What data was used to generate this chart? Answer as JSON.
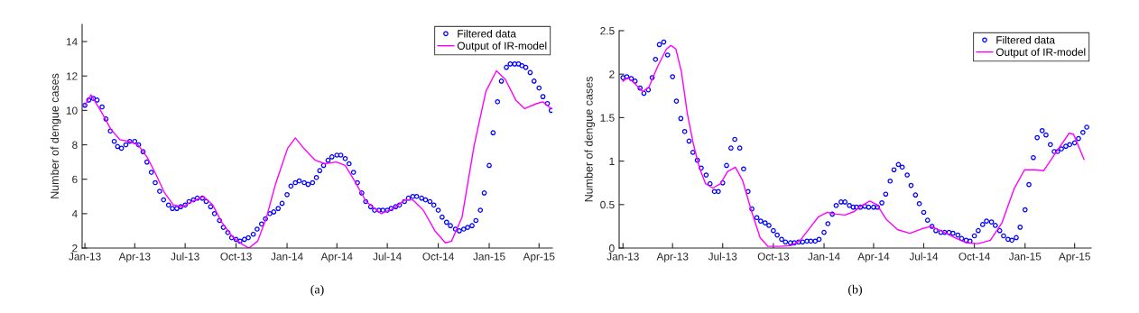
{
  "chart_data": [
    {
      "type": "line",
      "ylabel": "Number of dengue cases",
      "legend": "top right",
      "grid": false,
      "annotations": [
        "(a)"
      ],
      "xlim": [
        "2012-12-27",
        "2015-04-25"
      ],
      "ylim": [
        2,
        15
      ],
      "yticks": [
        2,
        4,
        6,
        8,
        10,
        12,
        14
      ],
      "xticks": [
        {
          "value": "2013-01-01",
          "label": "Jan-13"
        },
        {
          "value": "2013-04-01",
          "label": "Apr-13"
        },
        {
          "value": "2013-07-01",
          "label": "Jul-13"
        },
        {
          "value": "2013-10-01",
          "label": "Oct-13"
        },
        {
          "value": "2014-01-01",
          "label": "Jan-14"
        },
        {
          "value": "2014-04-01",
          "label": "Apr-14"
        },
        {
          "value": "2014-07-01",
          "label": "Jul-14"
        },
        {
          "value": "2014-10-01",
          "label": "Oct-14"
        },
        {
          "value": "2015-01-01",
          "label": "Jan-15"
        },
        {
          "value": "2015-04-01",
          "label": "Apr-15"
        }
      ],
      "series": [
        {
          "name": "Filtered data",
          "type": "scatter",
          "marker": "circle",
          "color": "#0000ff",
          "x": [
            "2013-01-01",
            "2013-01-08",
            "2013-01-16",
            "2013-01-23",
            "2013-02-01",
            "2013-02-08",
            "2013-02-16",
            "2013-02-23",
            "2013-03-01",
            "2013-03-08",
            "2013-03-16",
            "2013-03-23",
            "2013-04-01",
            "2013-04-08",
            "2013-04-16",
            "2013-04-23",
            "2013-05-01",
            "2013-05-08",
            "2013-05-16",
            "2013-05-23",
            "2013-06-01",
            "2013-06-08",
            "2013-06-16",
            "2013-06-23",
            "2013-07-01",
            "2013-07-08",
            "2013-07-16",
            "2013-07-23",
            "2013-08-01",
            "2013-08-08",
            "2013-08-16",
            "2013-08-23",
            "2013-09-01",
            "2013-09-08",
            "2013-09-16",
            "2013-09-23",
            "2013-10-01",
            "2013-10-08",
            "2013-10-16",
            "2013-10-23",
            "2013-11-01",
            "2013-11-08",
            "2013-11-16",
            "2013-11-23",
            "2013-12-01",
            "2013-12-08",
            "2013-12-16",
            "2013-12-23",
            "2014-01-01",
            "2014-01-08",
            "2014-01-16",
            "2014-01-23",
            "2014-02-01",
            "2014-02-08",
            "2014-02-16",
            "2014-02-23",
            "2014-03-01",
            "2014-03-08",
            "2014-03-16",
            "2014-03-23",
            "2014-04-01",
            "2014-04-08",
            "2014-04-16",
            "2014-04-23",
            "2014-05-01",
            "2014-05-08",
            "2014-05-16",
            "2014-05-23",
            "2014-06-01",
            "2014-06-08",
            "2014-06-16",
            "2014-06-23",
            "2014-07-01",
            "2014-07-08",
            "2014-07-16",
            "2014-07-23",
            "2014-08-01",
            "2014-08-08",
            "2014-08-16",
            "2014-08-23",
            "2014-09-01",
            "2014-09-08",
            "2014-09-16",
            "2014-09-23",
            "2014-10-01",
            "2014-10-08",
            "2014-10-16",
            "2014-10-23",
            "2014-11-01",
            "2014-11-08",
            "2014-11-16",
            "2014-11-23",
            "2014-12-01",
            "2014-12-08",
            "2014-12-16",
            "2014-12-23",
            "2015-01-01",
            "2015-01-08",
            "2015-01-16",
            "2015-01-23",
            "2015-02-01",
            "2015-02-08",
            "2015-02-16",
            "2015-02-23",
            "2015-03-01",
            "2015-03-08",
            "2015-03-16",
            "2015-03-23",
            "2015-04-01",
            "2015-04-08",
            "2015-04-16",
            "2015-04-23"
          ],
          "values": [
            10.3,
            10.6,
            10.7,
            10.6,
            10.2,
            9.5,
            8.8,
            8.2,
            7.9,
            7.8,
            8.0,
            8.2,
            8.2,
            8.0,
            7.6,
            7.0,
            6.4,
            5.8,
            5.3,
            4.8,
            4.5,
            4.3,
            4.3,
            4.4,
            4.5,
            4.7,
            4.8,
            4.9,
            4.9,
            4.7,
            4.4,
            4.0,
            3.6,
            3.2,
            2.9,
            2.6,
            2.5,
            2.4,
            2.5,
            2.6,
            2.8,
            3.1,
            3.4,
            3.7,
            4.0,
            4.1,
            4.3,
            4.6,
            5.1,
            5.6,
            5.8,
            5.9,
            5.8,
            5.7,
            5.8,
            6.1,
            6.5,
            6.8,
            7.1,
            7.3,
            7.4,
            7.4,
            7.2,
            6.9,
            6.4,
            5.8,
            5.2,
            4.7,
            4.4,
            4.2,
            4.2,
            4.2,
            4.2,
            4.3,
            4.4,
            4.5,
            4.7,
            4.9,
            5.0,
            5.0,
            4.9,
            4.8,
            4.7,
            4.5,
            4.2,
            3.8,
            3.5,
            3.3,
            3.1,
            3.0,
            3.1,
            3.2,
            3.3,
            3.6,
            4.2,
            5.2,
            6.8,
            8.7,
            10.5,
            11.7,
            12.5,
            12.7,
            12.7,
            12.7,
            12.6,
            12.5,
            12.2,
            11.7,
            11.3,
            10.8,
            10.4,
            10.0
          ]
        },
        {
          "name": "Output of IR-model",
          "line_style": "solid",
          "color": "#ff00ff",
          "x": [
            "2013-01-01",
            "2013-01-12",
            "2013-01-31",
            "2013-02-17",
            "2013-03-05",
            "2013-03-21",
            "2013-04-07",
            "2013-04-23",
            "2013-05-09",
            "2013-05-25",
            "2013-06-10",
            "2013-06-27",
            "2013-07-13",
            "2013-08-03",
            "2013-08-20",
            "2013-09-05",
            "2013-09-26",
            "2013-10-13",
            "2013-10-24",
            "2013-11-09",
            "2013-11-25",
            "2013-12-11",
            "2014-01-02",
            "2014-01-16",
            "2014-01-31",
            "2014-02-21",
            "2014-03-10",
            "2014-03-31",
            "2014-04-16",
            "2014-05-03",
            "2014-05-24",
            "2014-06-20",
            "2014-07-12",
            "2014-08-02",
            "2014-08-16",
            "2014-09-04",
            "2014-09-25",
            "2014-10-14",
            "2014-10-25",
            "2014-11-13",
            "2014-12-05",
            "2014-12-26",
            "2015-01-14",
            "2015-01-30",
            "2015-02-18",
            "2015-03-06",
            "2015-03-28",
            "2015-04-08",
            "2015-04-23"
          ],
          "values": [
            10.3,
            10.9,
            9.9,
            8.9,
            8.3,
            8.2,
            8.0,
            7.3,
            6.3,
            5.2,
            4.5,
            4.4,
            4.7,
            5.0,
            4.5,
            3.5,
            2.6,
            2.2,
            2.0,
            2.4,
            3.8,
            5.7,
            7.8,
            8.4,
            7.8,
            7.1,
            6.9,
            7.0,
            6.8,
            5.9,
            4.7,
            4.0,
            4.3,
            4.8,
            4.8,
            4.2,
            3.0,
            2.3,
            2.4,
            3.8,
            8.0,
            11.1,
            12.3,
            11.8,
            10.6,
            10.1,
            10.4,
            10.5,
            10.1
          ]
        }
      ]
    },
    {
      "type": "line",
      "ylabel": "Number of dengue cases",
      "legend": "top right",
      "grid": false,
      "annotations": [
        "(b)"
      ],
      "xlim": [
        "2012-12-25",
        "2015-05-01"
      ],
      "ylim": [
        0,
        2.5
      ],
      "yticks": [
        0,
        0.5,
        1,
        1.5,
        2,
        2.5
      ],
      "xticks": [
        {
          "value": "2013-01-01",
          "label": "Jan-13"
        },
        {
          "value": "2013-04-01",
          "label": "Apr-13"
        },
        {
          "value": "2013-07-01",
          "label": "Jul-13"
        },
        {
          "value": "2013-10-01",
          "label": "Oct-13"
        },
        {
          "value": "2014-01-01",
          "label": "Jan-14"
        },
        {
          "value": "2014-04-01",
          "label": "Apr-14"
        },
        {
          "value": "2014-07-01",
          "label": "Jul-14"
        },
        {
          "value": "2014-10-01",
          "label": "Oct-14"
        },
        {
          "value": "2015-01-01",
          "label": "Jan-15"
        },
        {
          "value": "2015-04-01",
          "label": "Apr-15"
        }
      ],
      "series": [
        {
          "name": "Filtered data",
          "type": "scatter",
          "marker": "circle",
          "color": "#0000ff",
          "x": [
            "2013-01-01",
            "2013-01-08",
            "2013-01-16",
            "2013-01-23",
            "2013-02-01",
            "2013-02-08",
            "2013-02-16",
            "2013-02-23",
            "2013-03-01",
            "2013-03-08",
            "2013-03-16",
            "2013-03-23",
            "2013-04-01",
            "2013-04-08",
            "2013-04-16",
            "2013-04-23",
            "2013-05-01",
            "2013-05-08",
            "2013-05-16",
            "2013-05-23",
            "2013-06-01",
            "2013-06-08",
            "2013-06-16",
            "2013-06-23",
            "2013-07-01",
            "2013-07-08",
            "2013-07-16",
            "2013-07-23",
            "2013-08-01",
            "2013-08-08",
            "2013-08-16",
            "2013-08-23",
            "2013-09-01",
            "2013-09-08",
            "2013-09-16",
            "2013-09-23",
            "2013-10-01",
            "2013-10-08",
            "2013-10-16",
            "2013-10-23",
            "2013-11-01",
            "2013-11-08",
            "2013-11-16",
            "2013-11-23",
            "2013-12-01",
            "2013-12-08",
            "2013-12-16",
            "2013-12-23",
            "2014-01-01",
            "2014-01-08",
            "2014-01-16",
            "2014-01-23",
            "2014-02-01",
            "2014-02-08",
            "2014-02-16",
            "2014-02-23",
            "2014-03-01",
            "2014-03-08",
            "2014-03-16",
            "2014-03-23",
            "2014-04-01",
            "2014-04-08",
            "2014-04-16",
            "2014-04-23",
            "2014-05-01",
            "2014-05-08",
            "2014-05-16",
            "2014-05-23",
            "2014-06-01",
            "2014-06-08",
            "2014-06-16",
            "2014-06-23",
            "2014-07-01",
            "2014-07-08",
            "2014-07-16",
            "2014-07-23",
            "2014-08-01",
            "2014-08-08",
            "2014-08-16",
            "2014-08-23",
            "2014-09-01",
            "2014-09-08",
            "2014-09-16",
            "2014-09-23",
            "2014-10-01",
            "2014-10-08",
            "2014-10-16",
            "2014-10-23",
            "2014-11-01",
            "2014-11-08",
            "2014-11-16",
            "2014-11-23",
            "2014-12-01",
            "2014-12-08",
            "2014-12-16",
            "2014-12-23",
            "2015-01-01",
            "2015-01-08",
            "2015-01-16",
            "2015-01-23",
            "2015-02-01",
            "2015-02-08",
            "2015-02-16",
            "2015-02-23",
            "2015-03-01",
            "2015-03-08",
            "2015-03-16",
            "2015-03-23",
            "2015-04-01",
            "2015-04-08",
            "2015-04-16",
            "2015-04-23"
          ],
          "values": [
            1.96,
            1.97,
            1.95,
            1.92,
            1.84,
            1.78,
            1.82,
            1.96,
            2.17,
            2.34,
            2.37,
            2.22,
            1.97,
            1.69,
            1.49,
            1.34,
            1.23,
            1.1,
            1.01,
            0.92,
            0.84,
            0.74,
            0.65,
            0.65,
            0.75,
            0.95,
            1.15,
            1.25,
            1.15,
            0.91,
            0.65,
            0.45,
            0.35,
            0.31,
            0.29,
            0.26,
            0.2,
            0.15,
            0.1,
            0.07,
            0.06,
            0.06,
            0.07,
            0.07,
            0.08,
            0.08,
            0.08,
            0.1,
            0.18,
            0.28,
            0.39,
            0.49,
            0.53,
            0.53,
            0.49,
            0.47,
            0.47,
            0.47,
            0.48,
            0.47,
            0.47,
            0.47,
            0.52,
            0.62,
            0.77,
            0.9,
            0.96,
            0.93,
            0.84,
            0.72,
            0.61,
            0.51,
            0.41,
            0.32,
            0.25,
            0.2,
            0.18,
            0.18,
            0.18,
            0.17,
            0.15,
            0.11,
            0.09,
            0.08,
            0.14,
            0.2,
            0.27,
            0.31,
            0.3,
            0.26,
            0.2,
            0.14,
            0.1,
            0.09,
            0.12,
            0.24,
            0.44,
            0.73,
            1.04,
            1.27,
            1.35,
            1.3,
            1.19,
            1.11,
            1.11,
            1.14,
            1.17,
            1.19,
            1.21,
            1.26,
            1.33,
            1.39
          ]
        },
        {
          "name": "Output of IR-model",
          "line_style": "solid",
          "color": "#ff00ff",
          "x": [
            "2013-01-01",
            "2013-01-10",
            "2013-01-21",
            "2013-02-06",
            "2013-02-17",
            "2013-03-05",
            "2013-03-21",
            "2013-03-29",
            "2013-04-07",
            "2013-04-17",
            "2013-04-28",
            "2013-05-09",
            "2013-05-20",
            "2013-05-31",
            "2013-06-13",
            "2013-06-27",
            "2013-07-10",
            "2013-07-24",
            "2013-08-06",
            "2013-08-22",
            "2013-09-07",
            "2013-09-21",
            "2013-10-13",
            "2013-11-03",
            "2013-11-19",
            "2013-12-06",
            "2013-12-22",
            "2014-01-07",
            "2014-01-23",
            "2014-02-08",
            "2014-02-25",
            "2014-03-06",
            "2014-03-25",
            "2014-04-07",
            "2014-04-24",
            "2014-05-15",
            "2014-06-06",
            "2014-06-27",
            "2014-07-14",
            "2014-08-04",
            "2014-08-26",
            "2014-09-16",
            "2014-10-08",
            "2014-10-30",
            "2014-11-20",
            "2014-12-12",
            "2014-12-31",
            "2015-01-19",
            "2015-02-04",
            "2015-02-25",
            "2015-03-22",
            "2015-03-30",
            "2015-04-18"
          ],
          "values": [
            1.92,
            1.96,
            1.9,
            1.8,
            1.85,
            2.09,
            2.29,
            2.33,
            2.29,
            2.03,
            1.54,
            1.19,
            0.92,
            0.74,
            0.69,
            0.74,
            0.88,
            0.93,
            0.78,
            0.43,
            0.12,
            0.02,
            0.02,
            0.03,
            0.09,
            0.23,
            0.36,
            0.41,
            0.39,
            0.38,
            0.42,
            0.47,
            0.54,
            0.5,
            0.33,
            0.21,
            0.17,
            0.22,
            0.25,
            0.19,
            0.12,
            0.06,
            0.05,
            0.09,
            0.29,
            0.68,
            0.9,
            0.9,
            0.89,
            1.09,
            1.32,
            1.31,
            1.02
          ]
        }
      ]
    }
  ]
}
